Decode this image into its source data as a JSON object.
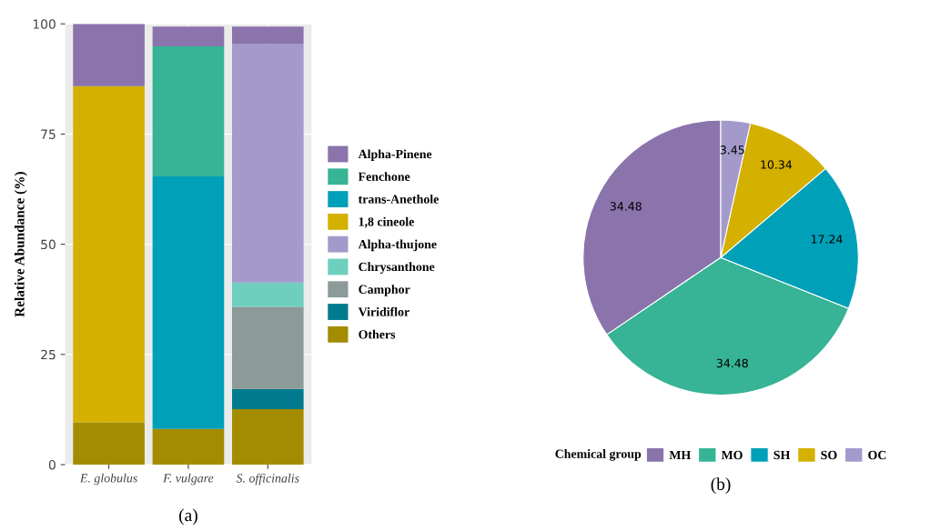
{
  "chart_data": [
    {
      "type": "bar",
      "stacked": true,
      "ylabel": "Relative Abundance (%)",
      "categories": [
        "E. globulus",
        "F. vulgare",
        "S. officinalis"
      ],
      "ylim": [
        0,
        100
      ],
      "yticks": [
        0,
        25,
        50,
        75,
        100
      ],
      "grid": true,
      "legend": "right",
      "series": [
        {
          "name": "Others",
          "color": "#a48c00",
          "values": [
            9.6,
            8.1,
            12.6
          ]
        },
        {
          "name": "Viridiflor",
          "color": "#007a8c",
          "values": [
            null,
            null,
            4.6
          ]
        },
        {
          "name": "Camphor",
          "color": "#8c9a99",
          "values": [
            null,
            null,
            18.6
          ]
        },
        {
          "name": "Chrysanthone",
          "color": "#6fcfbf",
          "values": [
            null,
            null,
            5.5
          ]
        },
        {
          "name": "Alpha-thujone",
          "color": "#a39acb",
          "values": [
            null,
            null,
            54.1
          ]
        },
        {
          "name": "1,8 cineole",
          "color": "#d4b000",
          "values": [
            76.3,
            null,
            null
          ]
        },
        {
          "name": "trans-Anethole",
          "color": "#00a0b8",
          "values": [
            null,
            57.3,
            null
          ]
        },
        {
          "name": "Fenchone",
          "color": "#36b495",
          "values": [
            null,
            29.5,
            null
          ]
        },
        {
          "name": "Alpha-Pinene",
          "color": "#8a74ab",
          "values": [
            14.1,
            4.5,
            4.0
          ]
        }
      ],
      "annotations": [
        "(a)"
      ]
    },
    {
      "type": "pie",
      "categories": [
        "MH",
        "MO",
        "SH",
        "SO",
        "OC"
      ],
      "values": [
        34.48,
        34.48,
        17.24,
        10.34,
        3.45
      ],
      "colors": [
        "#8a74ab",
        "#36b495",
        "#00a0b8",
        "#d4b000",
        "#a39acb"
      ],
      "data_labels": true,
      "legend": "bottom",
      "legend_title": "Chemical group",
      "annotations": [
        "(b)"
      ]
    }
  ]
}
